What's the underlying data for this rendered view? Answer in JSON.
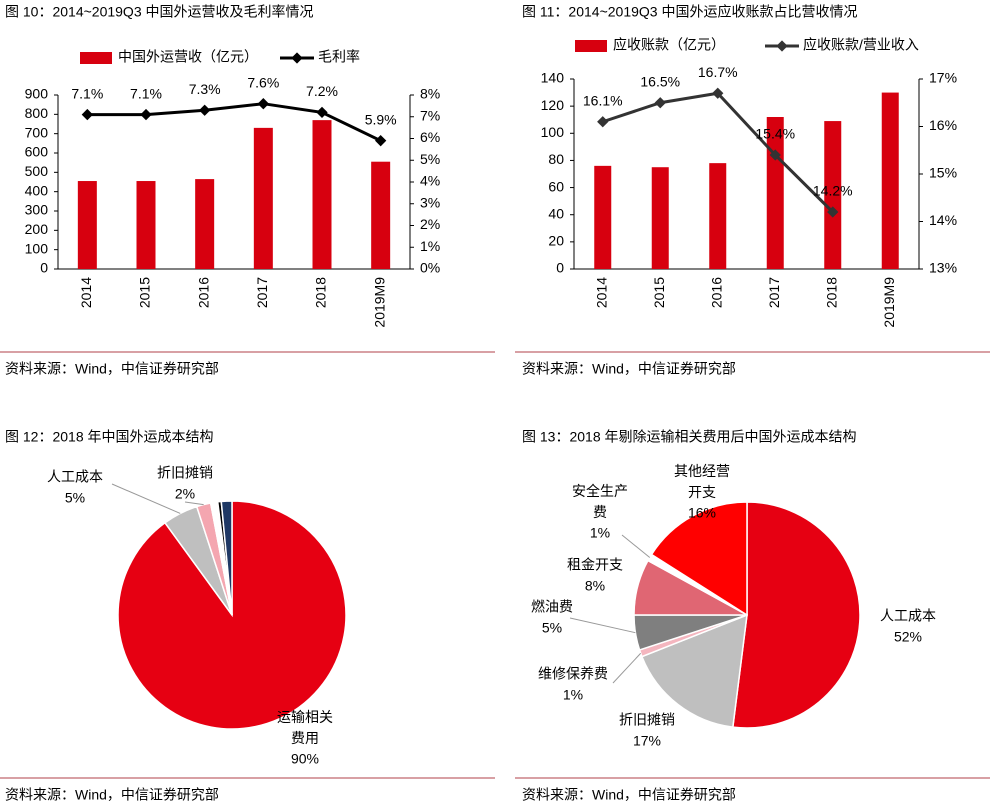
{
  "chart_data": [
    {
      "type": "bar",
      "title": "图 10：2014~2019Q3 中国外运营收及毛利率情况",
      "source": "资料来源：Wind，中信证券研究部",
      "categories": [
        "2014",
        "2015",
        "2016",
        "2017",
        "2018",
        "2019M9"
      ],
      "series": [
        {
          "name": "中国外运营收（亿元）",
          "type": "bar",
          "color": "#d7000f",
          "values": [
            455,
            455,
            465,
            730,
            770,
            555
          ]
        },
        {
          "name": "毛利率",
          "type": "line",
          "axis": "y2",
          "color": "#000000",
          "values": [
            7.1,
            7.1,
            7.3,
            7.6,
            7.2,
            5.9
          ],
          "value_labels": [
            "7.1%",
            "7.1%",
            "7.3%",
            "7.6%",
            "7.2%",
            "5.9%"
          ]
        }
      ],
      "ylim": [
        0,
        900
      ],
      "yticks": [
        0,
        100,
        200,
        300,
        400,
        500,
        600,
        700,
        800,
        900
      ],
      "y2lim": [
        0,
        8
      ],
      "y2ticks": [
        {
          "value": 0,
          "label": "0%"
        },
        {
          "value": 1,
          "label": "1%"
        },
        {
          "value": 2,
          "label": "2%"
        },
        {
          "value": 3,
          "label": "3%"
        },
        {
          "value": 4,
          "label": "4%"
        },
        {
          "value": 5,
          "label": "5%"
        },
        {
          "value": 6,
          "label": "6%"
        },
        {
          "value": 7,
          "label": "7%"
        },
        {
          "value": 8,
          "label": "8%"
        }
      ]
    },
    {
      "type": "bar",
      "title": "图 11：2014~2019Q3 中国外运应收账款占比营收情况",
      "source": "资料来源：Wind，中信证券研究部",
      "categories": [
        "2014",
        "2015",
        "2016",
        "2017",
        "2018",
        "2019M9"
      ],
      "series": [
        {
          "name": "应收账款（亿元）",
          "type": "bar",
          "color": "#d7000f",
          "values": [
            76,
            75,
            78,
            112,
            109,
            130
          ]
        },
        {
          "name": "应收账款/营业收入",
          "type": "line",
          "axis": "y2",
          "color": "#333333",
          "values": [
            16.1,
            16.5,
            16.7,
            15.4,
            14.2,
            null
          ],
          "value_labels": [
            "16.1%",
            "16.5%",
            "16.7%",
            "15.4%",
            "14.2%",
            null
          ]
        }
      ],
      "ylim": [
        0,
        140
      ],
      "yticks": [
        0,
        20,
        40,
        60,
        80,
        100,
        120,
        140
      ],
      "y2lim": [
        13,
        17
      ],
      "y2ticks": [
        {
          "value": 13,
          "label": "13%"
        },
        {
          "value": 14,
          "label": "14%"
        },
        {
          "value": 15,
          "label": "15%"
        },
        {
          "value": 16,
          "label": "16%"
        },
        {
          "value": 17,
          "label": "17%"
        }
      ]
    },
    {
      "type": "pie",
      "title": "图 12：2018 年中国外运成本结构",
      "source": "资料来源：Wind，中信证券研究部",
      "categories": [
        "运输相关\n费用",
        "人工成本",
        "折旧摊销",
        null,
        null,
        null
      ],
      "values": [
        90,
        5,
        2,
        1,
        0.5,
        1.5
      ],
      "value_labels": [
        "90%",
        "5%",
        "2%",
        null,
        null,
        null
      ],
      "colors": [
        "#e60012",
        "#bfbfbf",
        "#f4a6b0",
        "#ffffff",
        "#000000",
        "#1f3864"
      ]
    },
    {
      "type": "pie",
      "title": "图 13：2018 年剔除运输相关费用后中国外运成本结构",
      "source": "资料来源：Wind，中信证券研究部",
      "categories": [
        "人工成本",
        "折旧摊销",
        "维修保养费",
        "燃油费",
        "租金开支",
        "安全生产\n费",
        "其他经营\n开支"
      ],
      "values": [
        52,
        17,
        1,
        5,
        8,
        1,
        16
      ],
      "value_labels": [
        "52%",
        "17%",
        "1%",
        "5%",
        "8%",
        "1%",
        "16%"
      ],
      "colors": [
        "#e60012",
        "#bfbfbf",
        "#f4b6bf",
        "#7f7f7f",
        "#e06673",
        "#ffffff",
        "#ff0000"
      ]
    }
  ]
}
